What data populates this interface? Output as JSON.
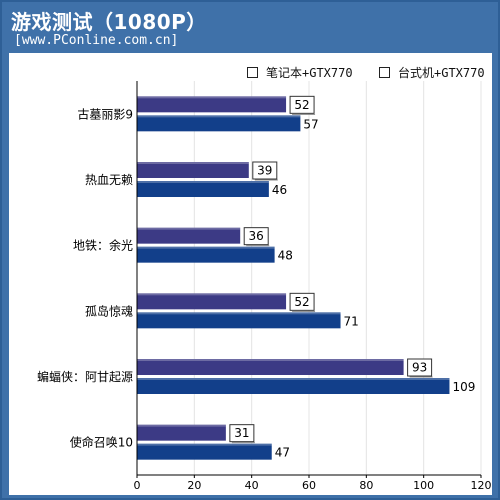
{
  "title": "游戏测试（1080P）",
  "subtitle": "[www.PConline.com.cn]",
  "colors": {
    "frame": "#3f71a9",
    "laptop": "#3c3a85",
    "desktop": "#123f8a",
    "grid": "#e4e4e4",
    "axis": "#000000"
  },
  "chart_data": {
    "type": "bar",
    "orientation": "horizontal",
    "categories": [
      "古墓丽影9",
      "热血无赖",
      "地铁：余光",
      "孤岛惊魂",
      "蝙蝠侠：阿甘起源",
      "使命召唤10"
    ],
    "series": [
      {
        "name": "笔记本+GTX770",
        "values": [
          52,
          39,
          36,
          52,
          93,
          31
        ]
      },
      {
        "name": "台式机+GTX770",
        "values": [
          57,
          46,
          48,
          71,
          109,
          47
        ]
      }
    ],
    "xlim": [
      0,
      120
    ],
    "xticks": [
      0,
      20,
      40,
      60,
      80,
      100,
      120
    ],
    "grid": true,
    "legend": "top-right"
  }
}
